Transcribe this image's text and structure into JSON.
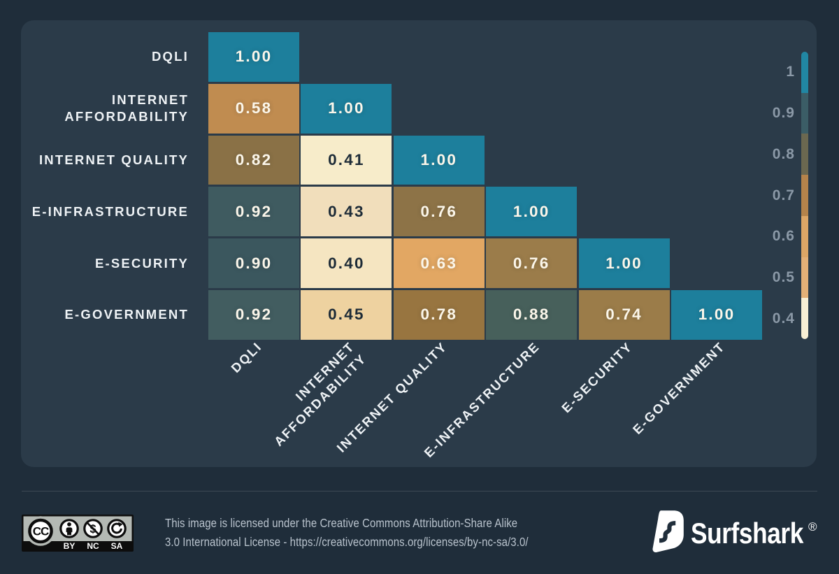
{
  "chart_data": {
    "type": "heatmap",
    "description": "Correlation matrix (lower triangle) of Digital Quality of Life index pillars",
    "categories": [
      "DQLI",
      "INTERNET\nAFFORDABILITY",
      "INTERNET QUALITY",
      "E-INFRASTRUCTURE",
      "E-SECURITY",
      "E-GOVERNMENT"
    ],
    "matrix": [
      [
        1.0
      ],
      [
        0.58,
        1.0
      ],
      [
        0.82,
        0.41,
        1.0
      ],
      [
        0.92,
        0.43,
        0.76,
        1.0
      ],
      [
        0.9,
        0.4,
        0.63,
        0.76,
        1.0
      ],
      [
        0.92,
        0.45,
        0.78,
        0.88,
        0.74,
        1.0
      ]
    ],
    "cell_colors": [
      [
        "#1d7f9c"
      ],
      [
        "#c08c50",
        "#1d7f9c"
      ],
      [
        "#8a7146",
        "#f7ecca",
        "#1d7f9c"
      ],
      [
        "#3f5b60",
        "#f1debb",
        "#8d7347",
        "#1d7f9c"
      ],
      [
        "#3b575e",
        "#f5e5c1",
        "#e2a763",
        "#9b7c4a",
        "#1d7f9c"
      ],
      [
        "#425d60",
        "#eed2a0",
        "#987540",
        "#47605b",
        "#9b7c49",
        "#1d7f9c"
      ]
    ],
    "value_format_decimals": 2,
    "colorbar": {
      "tick_labels": [
        "1",
        "0.9",
        "0.8",
        "0.7",
        "0.6",
        "0.5",
        "0.4"
      ],
      "segment_colors": [
        "#2187a3",
        "#3b5d66",
        "#6b6850",
        "#b4834b",
        "#dca666",
        "#e3b077",
        "#f8efd4"
      ]
    },
    "value_range": [
      0.4,
      1.0
    ],
    "text_color_light": "#fbf6ea",
    "text_color_dark": "#1d2b37"
  },
  "footer": {
    "license_line1": "This image is licensed under the Creative Commons Attribution-Share Alike",
    "license_line2": "3.0 International License - https://creativecommons.org/licenses/by-nc-sa/3.0/",
    "cc_badge": {
      "cc": "CC",
      "labels": [
        "BY",
        "NC",
        "SA"
      ]
    },
    "brand": {
      "name": "Surfshark",
      "registered": "®"
    }
  },
  "colors": {
    "background": "#1f2d3a",
    "panel": "#2b3b49",
    "accent_teal": "#1d7f9c"
  }
}
